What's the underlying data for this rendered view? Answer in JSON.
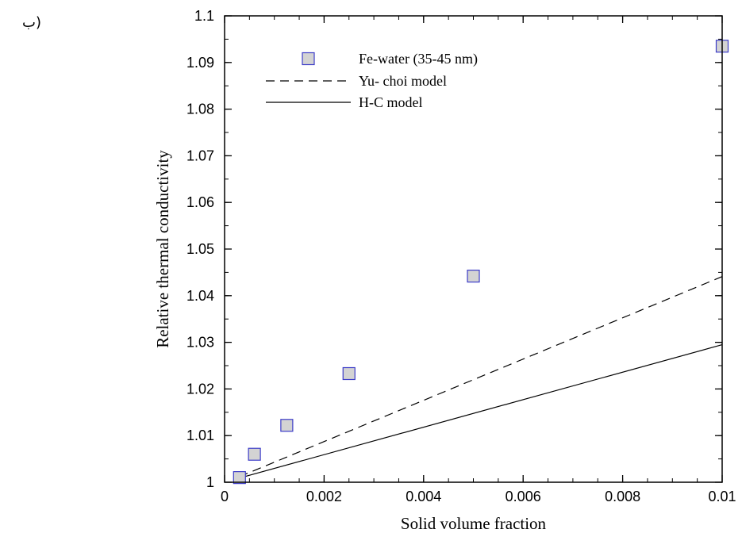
{
  "corner_mark": "ب)",
  "chart_data": {
    "type": "scatter",
    "title": "",
    "xlabel": "Solid volume fraction",
    "ylabel": "Relative thermal conductivity",
    "xlim": [
      0,
      0.01
    ],
    "ylim": [
      1,
      1.1
    ],
    "x_ticks": [
      0,
      0.002,
      0.004,
      0.006,
      0.008,
      0.01
    ],
    "x_tick_labels": [
      "0",
      "0.002",
      "0.004",
      "0.006",
      "0.008",
      "0.01"
    ],
    "x_minor_step": 0.0005,
    "y_ticks": [
      1,
      1.01,
      1.02,
      1.03,
      1.04,
      1.05,
      1.06,
      1.07,
      1.08,
      1.09,
      1.1
    ],
    "y_tick_labels": [
      "1",
      "1.01",
      "1.02",
      "1.03",
      "1.04",
      "1.05",
      "1.06",
      "1.07",
      "1.08",
      "1.09",
      "1.1"
    ],
    "y_minor_step": 0.005,
    "grid": false,
    "legend_position": "top-left",
    "series": [
      {
        "name": "Fe-water (35-45 nm)",
        "kind": "markers",
        "marker": "square",
        "fill": "#d3d3d3",
        "stroke": "#3c3cc8",
        "x": [
          0.0003,
          0.0006,
          0.00125,
          0.0025,
          0.005,
          0.01
        ],
        "y": [
          1.001,
          1.006,
          1.0122,
          1.0233,
          1.0442,
          1.0935
        ]
      },
      {
        "name": "Yu- choi model",
        "kind": "line",
        "dash": "dashed",
        "stroke": "#000000",
        "x": [
          0.0003,
          0.01
        ],
        "y": [
          1.0012,
          1.0441
        ]
      },
      {
        "name": "H-C model",
        "kind": "line",
        "dash": "solid",
        "stroke": "#000000",
        "x": [
          0.0003,
          0.01
        ],
        "y": [
          1.0009,
          1.0295
        ]
      }
    ]
  }
}
